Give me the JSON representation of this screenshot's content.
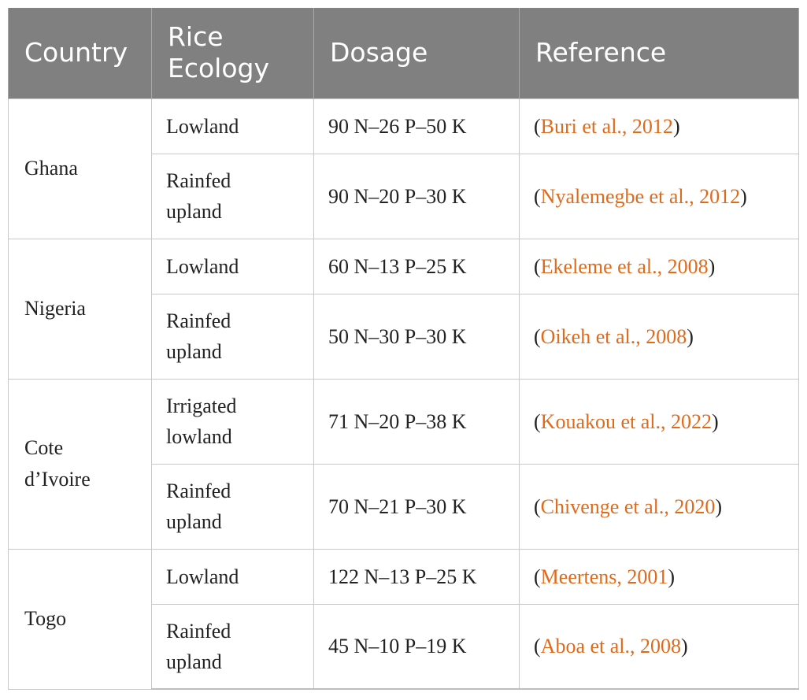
{
  "table": {
    "headers": [
      "Country",
      "Rice\nEcology",
      "Dosage",
      "Reference"
    ],
    "accent_color": "#e06a1c",
    "header_bg": "#808080",
    "rows": [
      {
        "country": "Ghana",
        "ecology": "Lowland",
        "dosage": "90 N–26 P–50 K",
        "reference": "Buri et al., 2012"
      },
      {
        "ecology": "Rainfed\nupland",
        "dosage": "90 N–20 P–30 K",
        "reference": "Nyalemegbe et al., 2012"
      },
      {
        "country": "Nigeria",
        "ecology": "Lowland",
        "dosage": "60 N–13 P–25 K",
        "reference": "Ekeleme et al., 2008"
      },
      {
        "ecology": "Rainfed\nupland",
        "dosage": "50 N–30 P–30 K",
        "reference": "Oikeh et al., 2008"
      },
      {
        "country": "Cote\nd’Ivoire",
        "ecology": "Irrigated\nlowland",
        "dosage": "71 N–20 P–38 K",
        "reference": "Kouakou et al., 2022"
      },
      {
        "ecology": "Rainfed\nupland",
        "dosage": "70 N–21 P–30 K",
        "reference": "Chivenge et al., 2020"
      },
      {
        "country": "Togo",
        "ecology": "Lowland",
        "dosage": "122 N–13 P–25 K",
        "reference": "Meertens, 2001"
      },
      {
        "ecology": "Rainfed\nupland",
        "dosage": "45 N–10 P–19 K",
        "reference": "Aboa et al., 2008"
      }
    ]
  }
}
